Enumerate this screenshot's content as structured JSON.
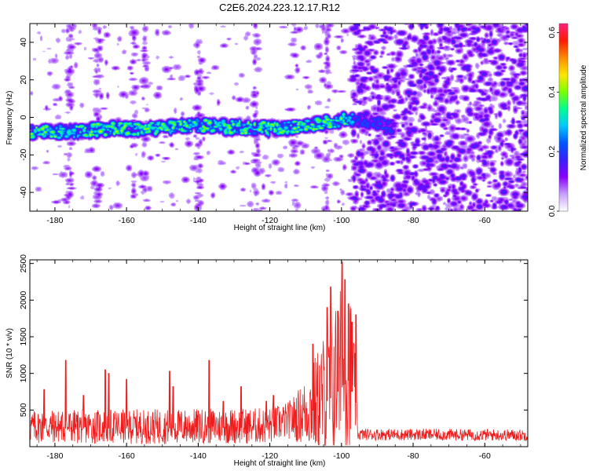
{
  "title": "C2E6.2024.223.12.17.R12",
  "chart_data": [
    {
      "type": "heatmap",
      "xlabel": "Height of straight line (km)",
      "ylabel": "Frequency (Hz)",
      "xlim": [
        -187,
        -48
      ],
      "ylim": [
        -50,
        50
      ],
      "xticks": [
        -180,
        -160,
        -140,
        -120,
        -100,
        -80,
        -60
      ],
      "yticks": [
        -40,
        -20,
        0,
        20,
        40
      ],
      "colorbar": {
        "label": "Normalized spectral amplitude",
        "range": [
          0.0,
          0.63
        ],
        "ticks": [
          0.0,
          0.2,
          0.4,
          0.6
        ],
        "colormap": [
          "#ffffff",
          "#c8a0ff",
          "#8a00ff",
          "#3a1fff",
          "#0055ff",
          "#00c8ff",
          "#00ff90",
          "#7aff00",
          "#ffe600",
          "#ff8a00",
          "#ff1a00",
          "#ff2080"
        ]
      },
      "ridge": {
        "center_hz_at_x": [
          [
            -187,
            -8
          ],
          [
            -160,
            -6
          ],
          [
            -140,
            -4
          ],
          [
            -120,
            -6
          ],
          [
            -110,
            -4
          ],
          [
            -98,
            -1
          ],
          [
            -90,
            -3
          ],
          [
            -85,
            -5
          ]
        ],
        "peak_amplitude": 0.63,
        "band_halfwidth_hz": 4
      },
      "regions": [
        {
          "x_range": [
            -187,
            -97
          ],
          "noise": "sparse",
          "noise_amplitude": 0.08
        },
        {
          "x_range": [
            -97,
            -48
          ],
          "noise": "dense",
          "noise_amplitude": 0.12
        }
      ]
    },
    {
      "type": "line",
      "xlabel": "Height of straight line (km)",
      "ylabel": "SNR (10 * v/v)",
      "xlim": [
        -187,
        -48
      ],
      "ylim": [
        0,
        2550
      ],
      "xticks": [
        -180,
        -160,
        -140,
        -120,
        -100,
        -80,
        -60
      ],
      "yticks": [
        500,
        1000,
        1500,
        2000,
        2500
      ],
      "color": "#ee1c1c",
      "baseline": [
        [
          -187,
          250
        ],
        [
          -150,
          250
        ],
        [
          -120,
          260
        ],
        [
          -112,
          380
        ],
        [
          -106,
          550
        ],
        [
          -102,
          700
        ],
        [
          -98,
          900
        ],
        [
          -96,
          600
        ],
        [
          -95.5,
          160
        ],
        [
          -48,
          150
        ]
      ],
      "noise_amplitude": [
        [
          -187,
          230
        ],
        [
          -115,
          250
        ],
        [
          -110,
          450
        ],
        [
          -100,
          1300
        ],
        [
          -97,
          1100
        ],
        [
          -95.5,
          80
        ],
        [
          -48,
          80
        ]
      ],
      "peaks": [
        {
          "x": -183,
          "y": 780
        },
        {
          "x": -177,
          "y": 1180
        },
        {
          "x": -172,
          "y": 700
        },
        {
          "x": -166,
          "y": 1050
        },
        {
          "x": -165,
          "y": 1000
        },
        {
          "x": -160,
          "y": 920
        },
        {
          "x": -148,
          "y": 1030
        },
        {
          "x": -147,
          "y": 820
        },
        {
          "x": -137,
          "y": 1180
        },
        {
          "x": -133,
          "y": 620
        },
        {
          "x": -128,
          "y": 820
        },
        {
          "x": -121,
          "y": 620
        },
        {
          "x": -119,
          "y": 700
        },
        {
          "x": -108,
          "y": 1400
        },
        {
          "x": -104,
          "y": 1900
        },
        {
          "x": -103,
          "y": 2180
        },
        {
          "x": -101,
          "y": 1850
        },
        {
          "x": -99.8,
          "y": 2520
        },
        {
          "x": -99,
          "y": 2280
        },
        {
          "x": -98,
          "y": 1950
        },
        {
          "x": -97,
          "y": 1700
        },
        {
          "x": -96,
          "y": 1800
        }
      ]
    }
  ]
}
